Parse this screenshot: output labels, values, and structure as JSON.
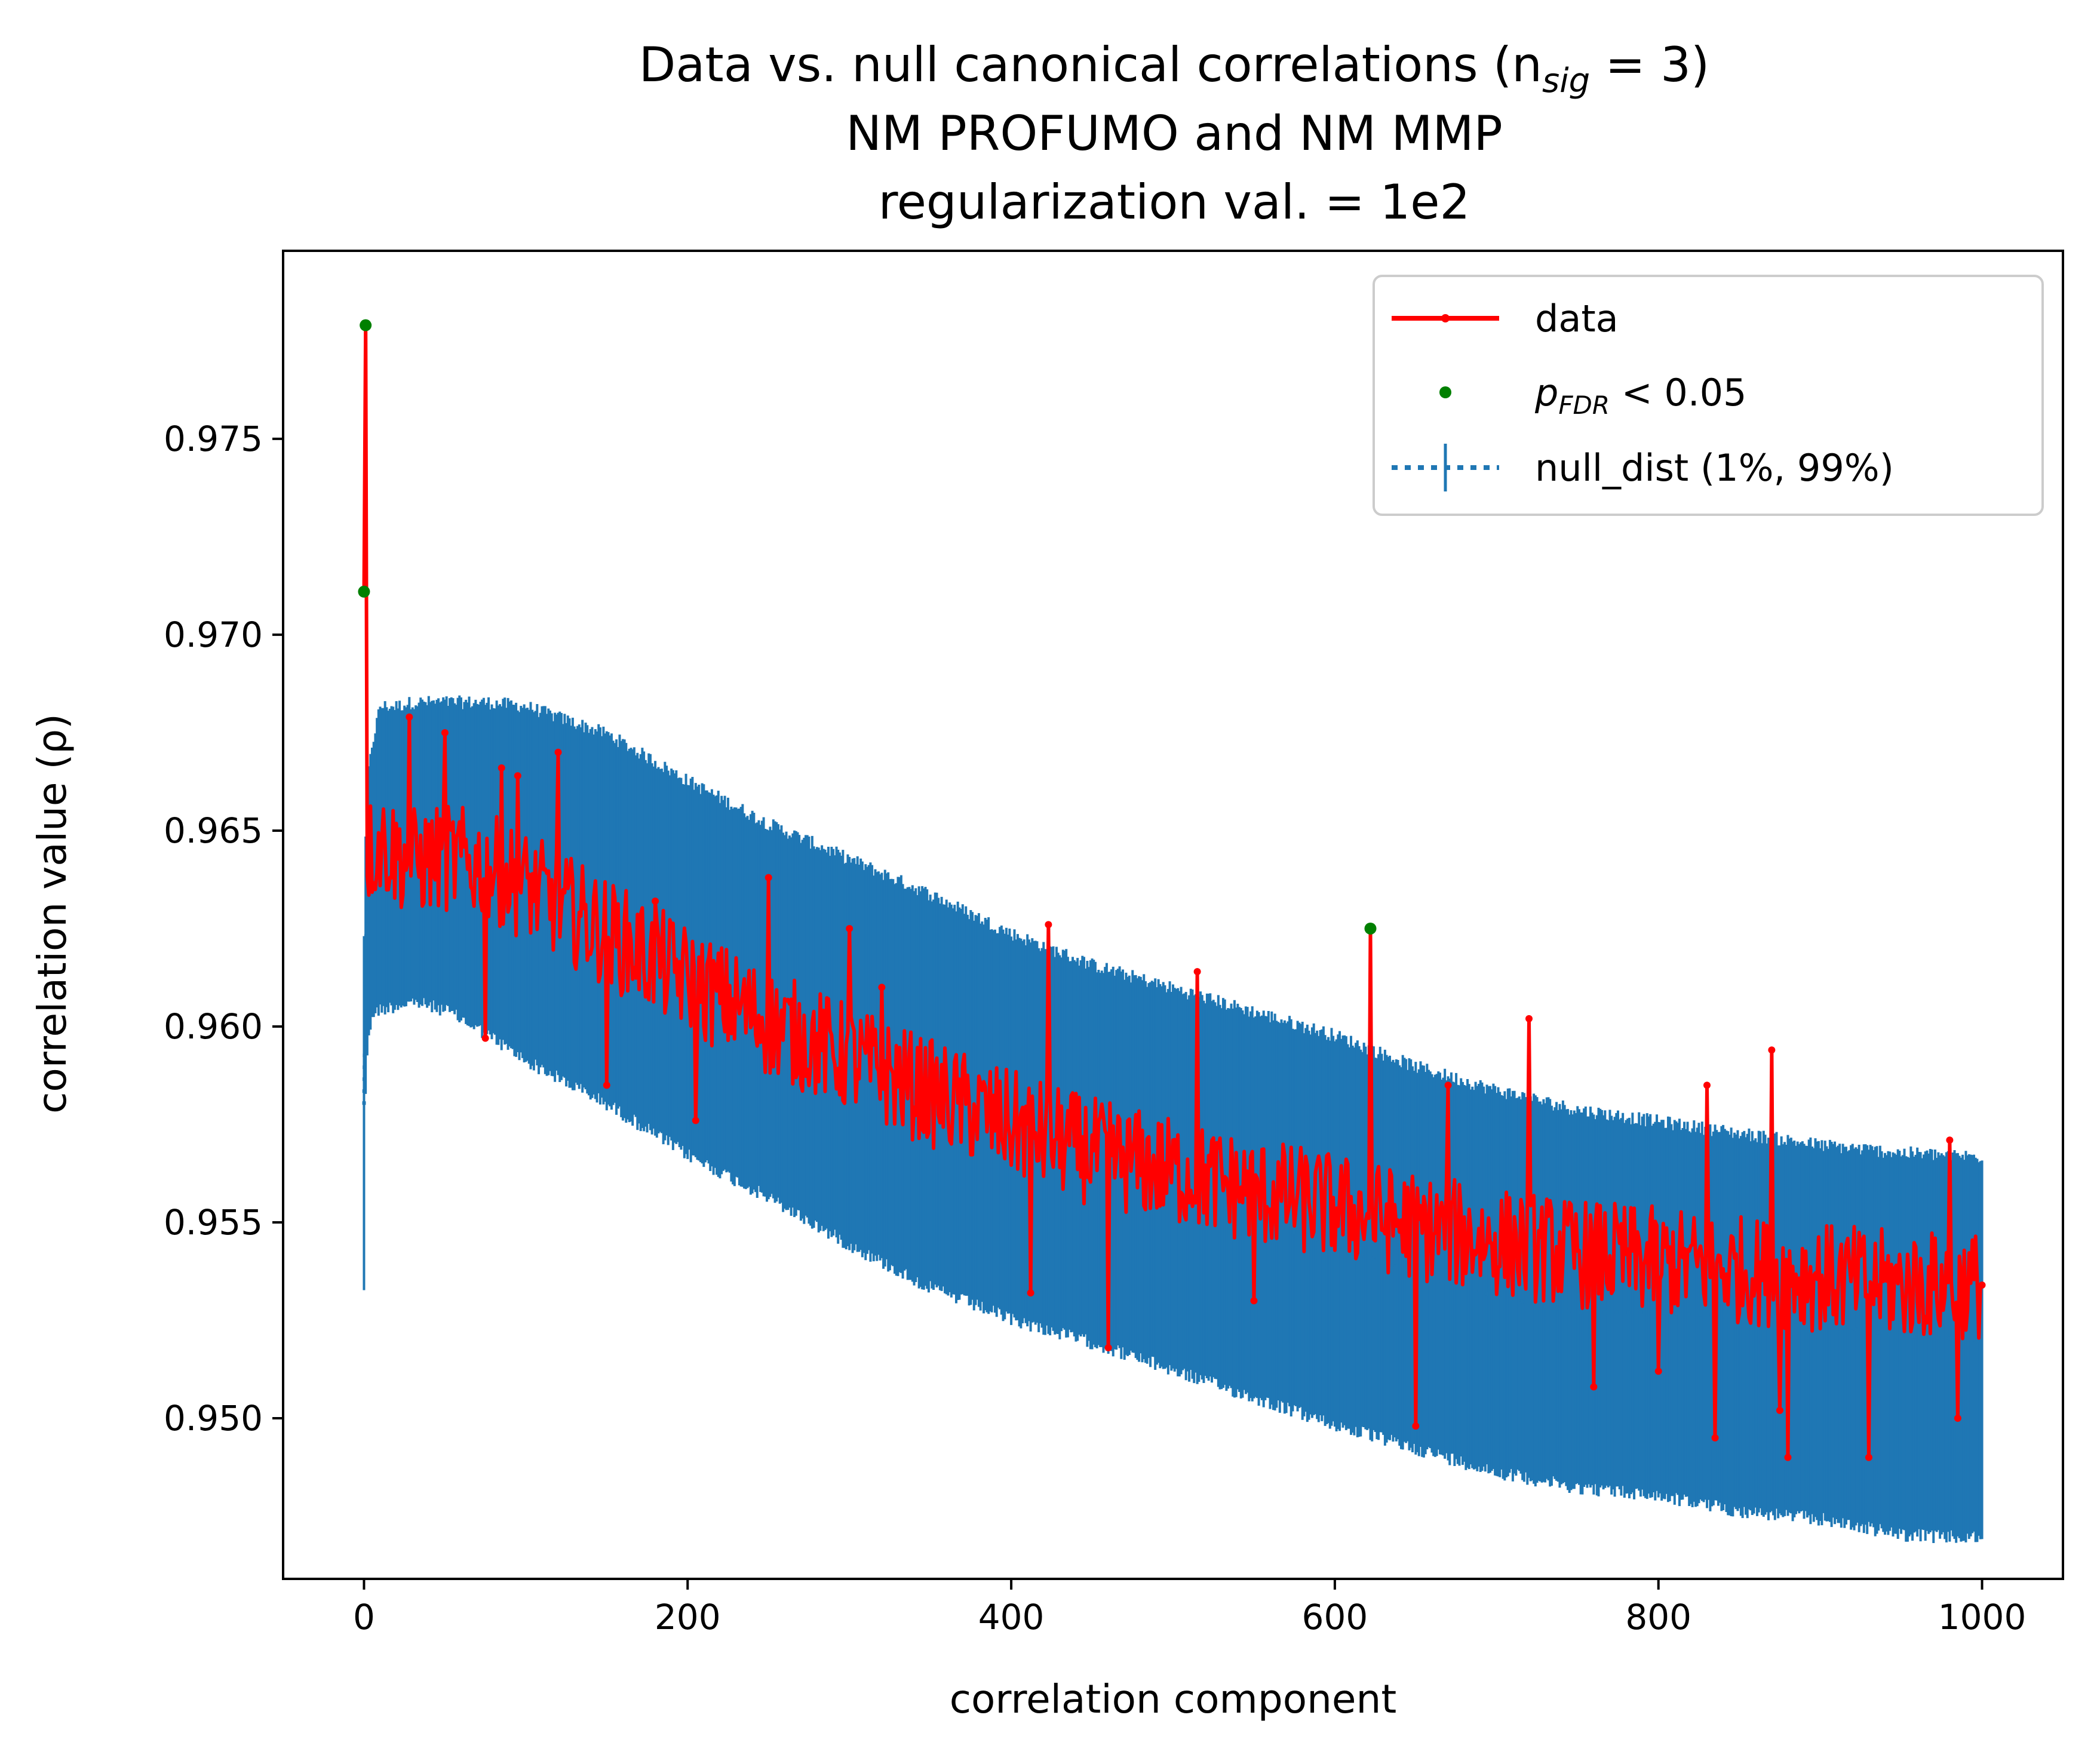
{
  "chart_data": {
    "type": "line",
    "title_lines": [
      "Data vs. null canonical correlations (n",
      "NM PROFUMO and NM MMP",
      "regularization val. = 1e2"
    ],
    "title_math": {
      "sub": "sig",
      "rest": " = 3)"
    },
    "xlabel": "correlation component",
    "ylabel": "correlation value (ρ)",
    "xlim": [
      -50,
      1050
    ],
    "ylim": [
      0.9459,
      0.9798
    ],
    "x_ticks": [
      0,
      200,
      400,
      600,
      800,
      1000
    ],
    "x_tick_labels": [
      "0",
      "200",
      "400",
      "600",
      "800",
      "1000"
    ],
    "y_ticks": [
      0.95,
      0.955,
      0.96,
      0.965,
      0.97,
      0.975
    ],
    "y_tick_labels": [
      "0.950",
      "0.955",
      "0.960",
      "0.965",
      "0.970",
      "0.975"
    ],
    "grid": false,
    "legend": {
      "placement": "upper right",
      "entries": [
        {
          "label": "data",
          "style": "red line with point markers"
        },
        {
          "label_main": "p",
          "label_sub": "FDR",
          "label_rest": " < 0.05",
          "style": "green point"
        },
        {
          "label": "null_dist (1%, 99%)",
          "style": "blue dotted line with error bar"
        }
      ]
    },
    "n_components": 1001,
    "series": [
      {
        "name": "data",
        "color": "#ff0000",
        "anchor_x": [
          0,
          1,
          2,
          5,
          10,
          20,
          30,
          50,
          75,
          100,
          150,
          200,
          250,
          300,
          350,
          400,
          450,
          500,
          550,
          600,
          650,
          700,
          750,
          800,
          850,
          900,
          950,
          1000
        ],
        "anchor_trend": [
          0.9711,
          0.9779,
          0.9645,
          0.9645,
          0.9647,
          0.9644,
          0.9642,
          0.9643,
          0.9641,
          0.9636,
          0.9624,
          0.9612,
          0.9601,
          0.9592,
          0.9583,
          0.9575,
          0.9568,
          0.9563,
          0.9558,
          0.9554,
          0.9549,
          0.9545,
          0.9542,
          0.954,
          0.9538,
          0.9536,
          0.9534,
          0.9534
        ],
        "noise_amplitude": 0.0014,
        "spikes": [
          {
            "x": 28,
            "y": 0.9679
          },
          {
            "x": 50,
            "y": 0.9675
          },
          {
            "x": 75,
            "y": 0.9597
          },
          {
            "x": 85,
            "y": 0.9666
          },
          {
            "x": 95,
            "y": 0.9664
          },
          {
            "x": 120,
            "y": 0.967
          },
          {
            "x": 150,
            "y": 0.9585
          },
          {
            "x": 180,
            "y": 0.9632
          },
          {
            "x": 205,
            "y": 0.9576
          },
          {
            "x": 250,
            "y": 0.9638
          },
          {
            "x": 300,
            "y": 0.9625
          },
          {
            "x": 320,
            "y": 0.961
          },
          {
            "x": 412,
            "y": 0.9532
          },
          {
            "x": 423,
            "y": 0.9626
          },
          {
            "x": 460,
            "y": 0.9518
          },
          {
            "x": 515,
            "y": 0.9614
          },
          {
            "x": 550,
            "y": 0.953
          },
          {
            "x": 622,
            "y": 0.9625
          },
          {
            "x": 650,
            "y": 0.9498
          },
          {
            "x": 670,
            "y": 0.9585
          },
          {
            "x": 720,
            "y": 0.9602
          },
          {
            "x": 760,
            "y": 0.9508
          },
          {
            "x": 800,
            "y": 0.9512
          },
          {
            "x": 830,
            "y": 0.9585
          },
          {
            "x": 835,
            "y": 0.9495
          },
          {
            "x": 870,
            "y": 0.9594
          },
          {
            "x": 875,
            "y": 0.9502
          },
          {
            "x": 880,
            "y": 0.949
          },
          {
            "x": 930,
            "y": 0.949
          },
          {
            "x": 980,
            "y": 0.9571
          },
          {
            "x": 985,
            "y": 0.95
          },
          {
            "x": 1000,
            "y": 0.9534
          }
        ]
      },
      {
        "name": "null_dist (1%, 99%)",
        "color": "#1f77b4",
        "anchor_x": [
          0,
          1,
          2,
          5,
          10,
          20,
          30,
          50,
          75,
          100,
          150,
          200,
          250,
          300,
          350,
          400,
          450,
          500,
          550,
          600,
          650,
          700,
          750,
          800,
          850,
          900,
          950,
          1000
        ],
        "anchor_median": [
          0.958,
          0.962,
          0.9632,
          0.964,
          0.9645,
          0.9645,
          0.9645,
          0.9645,
          0.9644,
          0.9638,
          0.9627,
          0.9616,
          0.9605,
          0.9594,
          0.9584,
          0.9575,
          0.9567,
          0.9559,
          0.9551,
          0.9544,
          0.9537,
          0.9531,
          0.9527,
          0.9527,
          0.9526,
          0.9524,
          0.9521,
          0.952
        ],
        "anchor_lower": [
          0.9535,
          0.9585,
          0.9595,
          0.9605,
          0.9606,
          0.9607,
          0.9608,
          0.9606,
          0.96,
          0.9593,
          0.9582,
          0.9569,
          0.9558,
          0.9546,
          0.9535,
          0.9527,
          0.9521,
          0.9514,
          0.9507,
          0.95,
          0.9494,
          0.9488,
          0.9484,
          0.9482,
          0.9478,
          0.9476,
          0.9472,
          0.9471
        ],
        "anchor_upper": [
          0.9622,
          0.9645,
          0.966,
          0.967,
          0.968,
          0.968,
          0.9681,
          0.9681,
          0.9681,
          0.968,
          0.9673,
          0.9661,
          0.965,
          0.9641,
          0.9632,
          0.9622,
          0.9614,
          0.9608,
          0.9602,
          0.9596,
          0.9588,
          0.9582,
          0.9577,
          0.9574,
          0.9571,
          0.9568,
          0.9566,
          0.9565
        ]
      },
      {
        "name": "p_FDR < 0.05",
        "color": "#008000",
        "points": [
          {
            "x": 0,
            "y": 0.9711
          },
          {
            "x": 1,
            "y": 0.9779
          },
          {
            "x": 622,
            "y": 0.9625
          }
        ]
      }
    ]
  }
}
